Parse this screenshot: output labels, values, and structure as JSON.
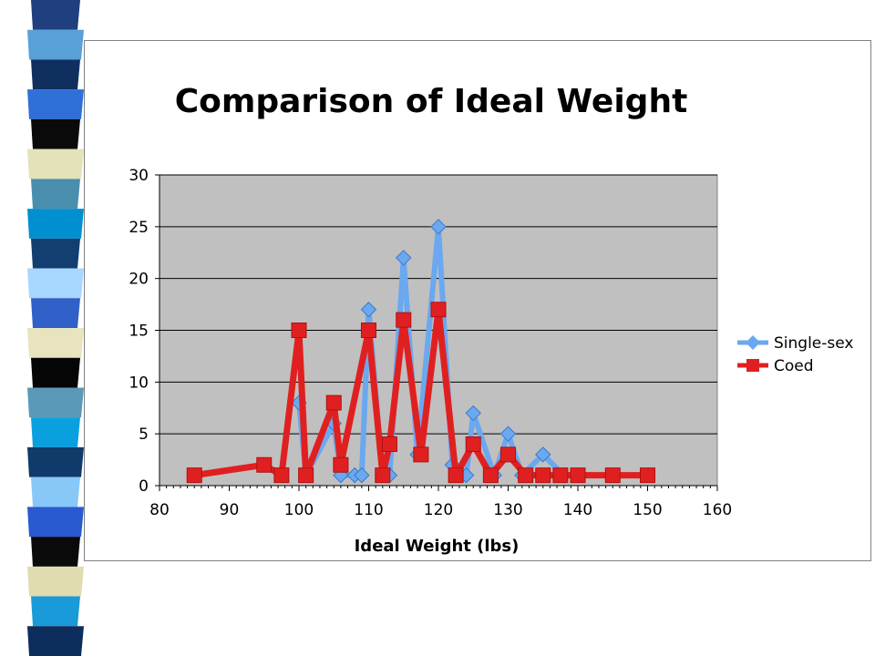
{
  "decor": {
    "strip_colors": [
      "#1f3f7f",
      "#5aa0d8",
      "#0f2f5f",
      "#2f6fd8",
      "#0a0a0a",
      "#e4e2b8",
      "#4a8eae",
      "#0090d0",
      "#123f6f",
      "#a8d8ff",
      "#3060c8",
      "#e8e4c0",
      "#050505",
      "#5a9ab8",
      "#0aa0e0",
      "#0f3a6a",
      "#88c8f8",
      "#2a5ad0",
      "#0a0a0a",
      "#e0dcb0",
      "#1a9ad8",
      "#0d2d5d"
    ]
  },
  "chart_data": {
    "type": "line",
    "title": "Comparison of Ideal Weight",
    "xlabel": "Ideal Weight (lbs)",
    "ylabel": "",
    "xlim": [
      80,
      160
    ],
    "ylim": [
      0,
      30
    ],
    "xticks": [
      80,
      90,
      100,
      110,
      120,
      130,
      140,
      150,
      160
    ],
    "yticks": [
      0,
      5,
      10,
      15,
      20,
      25,
      30
    ],
    "grid": true,
    "legend_position": "right",
    "plot_bg": "#c0c0c0",
    "series": [
      {
        "name": "Single-sex",
        "color": "#6aa8f0",
        "marker": "diamond",
        "points": [
          [
            100,
            8
          ],
          [
            101,
            1
          ],
          [
            105,
            6
          ],
          [
            106,
            1
          ],
          [
            108,
            1
          ],
          [
            109,
            1
          ],
          [
            110,
            17
          ],
          [
            112,
            1
          ],
          [
            113,
            1
          ],
          [
            115,
            22
          ],
          [
            117,
            3
          ],
          [
            120,
            25
          ],
          [
            122,
            2
          ],
          [
            124,
            1
          ],
          [
            125,
            7
          ],
          [
            128,
            1
          ],
          [
            130,
            5
          ],
          [
            132,
            1
          ],
          [
            135,
            3
          ],
          [
            138,
            1
          ]
        ]
      },
      {
        "name": "Coed",
        "color": "#e02020",
        "marker": "square",
        "points": [
          [
            85,
            1
          ],
          [
            95,
            2
          ],
          [
            97.5,
            1
          ],
          [
            100,
            15
          ],
          [
            101,
            1
          ],
          [
            105,
            8
          ],
          [
            106,
            2
          ],
          [
            110,
            15
          ],
          [
            112,
            1
          ],
          [
            113,
            4
          ],
          [
            115,
            16
          ],
          [
            117.5,
            3
          ],
          [
            120,
            17
          ],
          [
            122.5,
            1
          ],
          [
            125,
            4
          ],
          [
            127.5,
            1
          ],
          [
            130,
            3
          ],
          [
            132.5,
            1
          ],
          [
            135,
            1
          ],
          [
            137.5,
            1
          ],
          [
            140,
            1
          ],
          [
            145,
            1
          ],
          [
            150,
            1
          ]
        ]
      }
    ]
  }
}
